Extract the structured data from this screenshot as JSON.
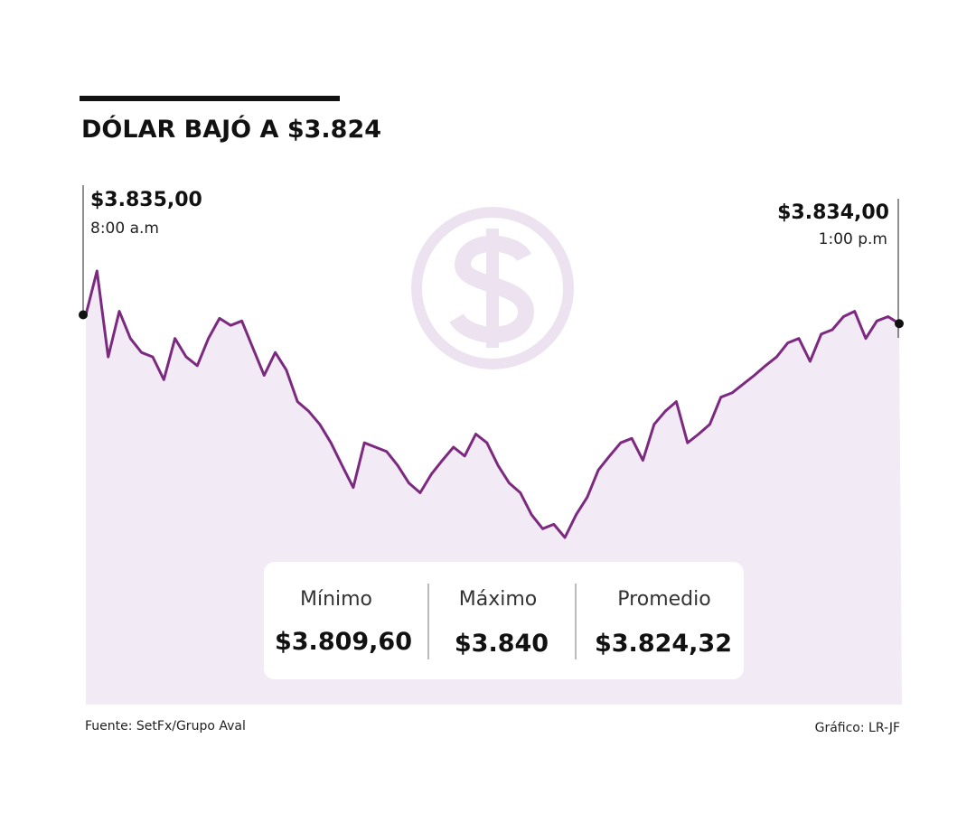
{
  "chart_data": {
    "type": "line",
    "title": "DÓLAR BAJÓ A $3.824",
    "color": "#7b2a80",
    "fill_color": "#f2eaf5",
    "values": [
      3835,
      3840,
      3830.2,
      3835.4,
      3832.3,
      3830.7,
      3830.2,
      3827.6,
      3832.3,
      3830.2,
      3829.2,
      3832.3,
      3834.6,
      3833.8,
      3834.3,
      3831.2,
      3828.1,
      3830.7,
      3828.7,
      3825.1,
      3824.0,
      3822.5,
      3820.4,
      3817.8,
      3815.3,
      3820.4,
      3819.9,
      3819.4,
      3817.8,
      3815.8,
      3814.7,
      3816.8,
      3818.4,
      3819.9,
      3818.9,
      3821.4,
      3820.4,
      3817.8,
      3815.8,
      3814.7,
      3812.2,
      3810.6,
      3811.1,
      3809.6,
      3812.2,
      3814.2,
      3817.3,
      3818.9,
      3820.4,
      3820.9,
      3818.4,
      3822.5,
      3824.0,
      3825.1,
      3820.4,
      3821.4,
      3822.5,
      3825.6,
      3826.1,
      3827.1,
      3828.1,
      3829.2,
      3830.2,
      3831.8,
      3832.3,
      3829.7,
      3832.8,
      3833.3,
      3834.8,
      3835.4,
      3832.3,
      3834.3,
      3834.8,
      3834
    ],
    "start_annotation": {
      "value": "$3.835,00",
      "time": "8:00 a.m"
    },
    "end_annotation": {
      "value": "$3.834,00",
      "time": "1:00 p.m"
    },
    "stats": [
      {
        "label": "Mínimo",
        "value": "$3.809,60"
      },
      {
        "label": "Máximo",
        "value": "$3.840"
      },
      {
        "label": "Promedio",
        "value": "$3.824,32"
      }
    ],
    "source": "Fuente: SetFx/Grupo Aval",
    "credit": "Gráfico: LR-JF"
  }
}
